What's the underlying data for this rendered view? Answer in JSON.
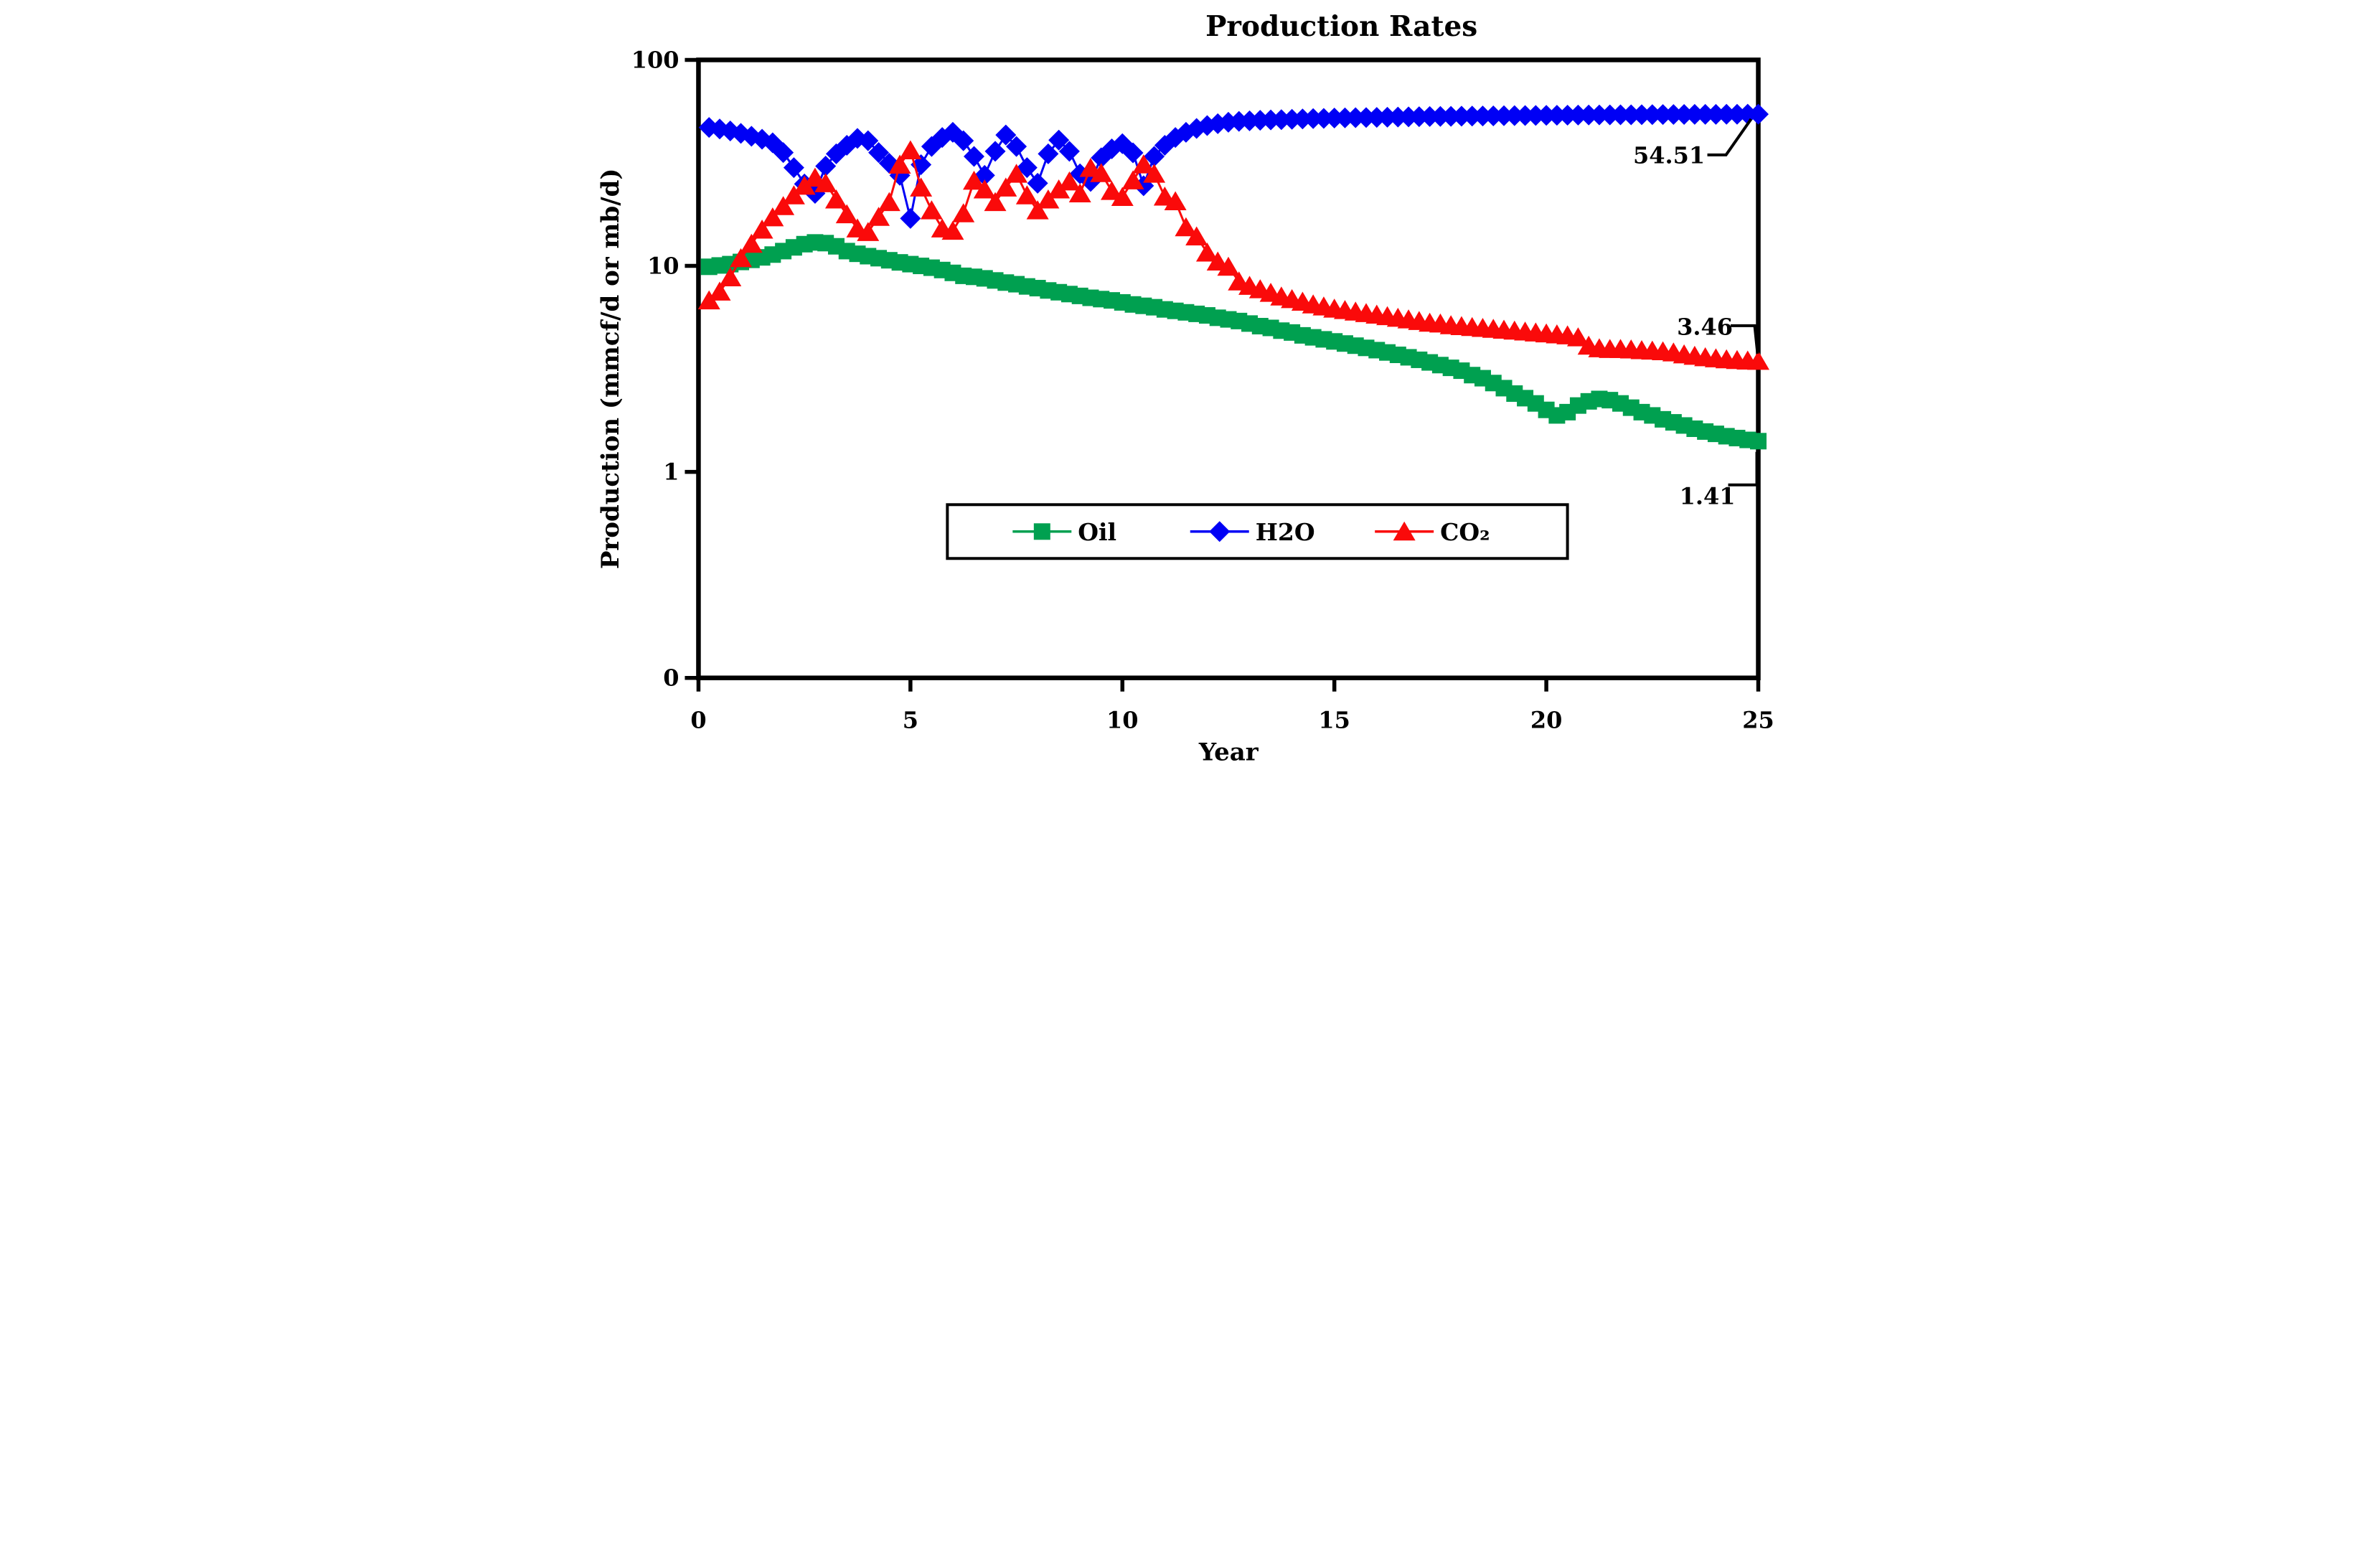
{
  "title": "Production Rates",
  "axes": {
    "x": {
      "label": "Year",
      "min": 0,
      "max": 25,
      "ticks": [
        0,
        5,
        10,
        15,
        20,
        25
      ]
    },
    "y": {
      "label": "Production (mmcf/d or mb/d)",
      "scale": "log",
      "tick_values": [
        100,
        10,
        1,
        0.1
      ],
      "tick_labels": [
        "100",
        "10",
        "1",
        "0"
      ]
    }
  },
  "legend": {
    "items": [
      {
        "label": "Oil",
        "marker": "square",
        "color": "#00A050"
      },
      {
        "label": "H2O",
        "marker": "diamond",
        "color": "#0000F5"
      },
      {
        "label": "CO₂",
        "marker": "triangle",
        "color": "#FA0A0A"
      }
    ]
  },
  "annotations": [
    {
      "text": "54.51",
      "series": "H2O"
    },
    {
      "text": "3.46",
      "series": "CO2"
    },
    {
      "text": "1.41",
      "series": "Oil"
    }
  ],
  "chart_data": {
    "type": "line",
    "title": "Production Rates",
    "xlabel": "Year",
    "ylabel": "Production (mmcf/d or mb/d)",
    "x_range": [
      0,
      25
    ],
    "y_range": [
      0.1,
      100
    ],
    "y_scale": "log",
    "grid": false,
    "legend_position": "inside-bottom-center",
    "x": [
      0.25,
      0.5,
      0.75,
      1,
      1.25,
      1.5,
      1.75,
      2,
      2.25,
      2.5,
      2.75,
      3,
      3.25,
      3.5,
      3.75,
      4,
      4.25,
      4.5,
      4.75,
      5,
      5.25,
      5.5,
      5.75,
      6,
      6.25,
      6.5,
      6.75,
      7,
      7.25,
      7.5,
      7.75,
      8,
      8.25,
      8.5,
      8.75,
      9,
      9.25,
      9.5,
      9.75,
      10,
      10.25,
      10.5,
      10.75,
      11,
      11.25,
      11.5,
      11.75,
      12,
      12.25,
      12.5,
      12.75,
      13,
      13.25,
      13.5,
      13.75,
      14,
      14.25,
      14.5,
      14.75,
      15,
      15.25,
      15.5,
      15.75,
      16,
      16.25,
      16.5,
      16.75,
      17,
      17.25,
      17.5,
      17.75,
      18,
      18.25,
      18.5,
      18.75,
      19,
      19.25,
      19.5,
      19.75,
      20,
      20.25,
      20.5,
      20.75,
      21,
      21.25,
      21.5,
      21.75,
      22,
      22.25,
      22.5,
      22.75,
      23,
      23.25,
      23.5,
      23.75,
      24,
      24.25,
      24.5,
      24.75,
      25
    ],
    "series": [
      {
        "name": "Oil",
        "marker": "square",
        "color": "#00A050",
        "end_label": "1.41",
        "values": [
          9.9,
          10.05,
          10.2,
          10.45,
          10.7,
          11.0,
          11.35,
          11.8,
          12.3,
          12.75,
          13.0,
          12.9,
          12.45,
          11.8,
          11.45,
          11.15,
          10.9,
          10.65,
          10.4,
          10.2,
          10.0,
          9.8,
          9.55,
          9.25,
          8.95,
          8.85,
          8.7,
          8.5,
          8.3,
          8.15,
          7.95,
          7.8,
          7.6,
          7.45,
          7.3,
          7.15,
          7.0,
          6.9,
          6.8,
          6.65,
          6.5,
          6.4,
          6.3,
          6.15,
          6.05,
          5.95,
          5.85,
          5.75,
          5.6,
          5.5,
          5.4,
          5.25,
          5.1,
          5.0,
          4.85,
          4.75,
          4.6,
          4.5,
          4.4,
          4.3,
          4.2,
          4.1,
          4.0,
          3.9,
          3.8,
          3.7,
          3.6,
          3.5,
          3.4,
          3.3,
          3.2,
          3.1,
          2.95,
          2.85,
          2.7,
          2.55,
          2.4,
          2.28,
          2.15,
          2.0,
          1.88,
          1.95,
          2.1,
          2.2,
          2.26,
          2.23,
          2.15,
          2.05,
          1.95,
          1.88,
          1.8,
          1.74,
          1.68,
          1.62,
          1.57,
          1.53,
          1.49,
          1.46,
          1.43,
          1.41
        ]
      },
      {
        "name": "H2O",
        "marker": "diamond",
        "color": "#0000F5",
        "end_label": "54.51",
        "values": [
          47.0,
          46.2,
          45.2,
          44.0,
          42.6,
          41.2,
          39.6,
          35.5,
          30.0,
          25.0,
          22.5,
          30.5,
          35.0,
          38.5,
          41.6,
          40.5,
          35.5,
          31.5,
          27.5,
          17.0,
          31.0,
          38.0,
          42.0,
          44.5,
          40.5,
          34.0,
          27.5,
          36.0,
          43.2,
          38.0,
          30.0,
          25.2,
          35.0,
          40.8,
          36.0,
          28.0,
          25.7,
          33.5,
          37.0,
          39.2,
          35.4,
          24.5,
          34.0,
          38.5,
          42.0,
          44.5,
          46.5,
          48.0,
          49.0,
          49.8,
          50.3,
          50.6,
          50.9,
          51.1,
          51.3,
          51.5,
          51.7,
          51.9,
          52.0,
          52.2,
          52.3,
          52.4,
          52.5,
          52.6,
          52.7,
          52.8,
          52.9,
          53.0,
          53.1,
          53.15,
          53.2,
          53.3,
          53.4,
          53.45,
          53.5,
          53.6,
          53.65,
          53.7,
          53.75,
          53.8,
          53.85,
          53.9,
          53.95,
          54.0,
          54.05,
          54.1,
          54.12,
          54.15,
          54.2,
          54.25,
          54.3,
          54.32,
          54.35,
          54.38,
          54.4,
          54.42,
          54.45,
          54.47,
          54.49,
          54.51
        ]
      },
      {
        "name": "CO2",
        "marker": "triangle",
        "color": "#FA0A0A",
        "end_label": "3.46",
        "values": [
          6.8,
          7.5,
          8.8,
          10.9,
          12.8,
          15.0,
          17.2,
          19.5,
          22.0,
          24.5,
          26.8,
          25.2,
          21.0,
          17.8,
          15.2,
          14.6,
          17.3,
          20.4,
          31.0,
          36.4,
          24.0,
          18.6,
          15.2,
          14.8,
          18.0,
          25.9,
          23.5,
          20.4,
          24.0,
          28.0,
          22.0,
          18.6,
          21.0,
          23.5,
          25.7,
          22.5,
          29.9,
          28.2,
          23.1,
          21.6,
          26.0,
          31.1,
          28.0,
          21.7,
          20.6,
          15.4,
          13.9,
          11.6,
          10.5,
          9.9,
          8.4,
          8.0,
          7.7,
          7.4,
          7.1,
          6.9,
          6.7,
          6.5,
          6.35,
          6.2,
          6.1,
          6.0,
          5.9,
          5.8,
          5.7,
          5.6,
          5.5,
          5.4,
          5.3,
          5.25,
          5.15,
          5.1,
          5.05,
          5.0,
          4.95,
          4.9,
          4.85,
          4.8,
          4.75,
          4.7,
          4.65,
          4.6,
          4.5,
          4.1,
          3.98,
          3.95,
          3.95,
          3.93,
          3.9,
          3.88,
          3.85,
          3.8,
          3.72,
          3.66,
          3.6,
          3.56,
          3.52,
          3.49,
          3.47,
          3.46
        ]
      }
    ]
  }
}
